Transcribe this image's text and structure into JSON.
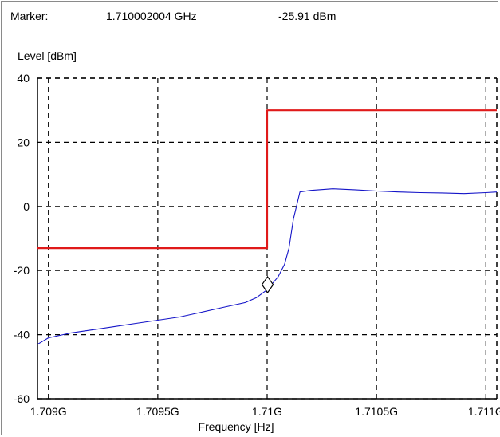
{
  "marker": {
    "label": "Marker:",
    "frequency": "1.710002004 GHz",
    "level": "-25.91 dBm"
  },
  "colors": {
    "trace": "#1414c8",
    "limit": "#e01a1a",
    "grid": "#000000"
  },
  "chart_data": {
    "type": "line",
    "title": "",
    "xlabel": "Frequency [Hz]",
    "ylabel": "Level [dBm]",
    "xlim": [
      1708950000,
      1711050000
    ],
    "ylim": [
      -60,
      40
    ],
    "grid": true,
    "x_ticks": [
      1709000000,
      1709500000,
      1710000000,
      1710500000,
      1711000000
    ],
    "x_tick_labels": [
      "1.709G",
      "1.7095G",
      "1.71G",
      "1.7105G",
      "1.711G"
    ],
    "y_ticks": [
      40,
      20,
      0,
      -20,
      -40,
      -60
    ],
    "y_tick_labels": [
      "40",
      "20",
      "0",
      "-20",
      "-40",
      "-60"
    ],
    "series": [
      {
        "role": "limit",
        "x": [
          1708950000,
          1710000000,
          1710000000,
          1711050000
        ],
        "y": [
          -13,
          -13,
          30,
          30
        ]
      },
      {
        "role": "trace",
        "x": [
          1708950000,
          1709000000,
          1709100000,
          1709200000,
          1709300000,
          1709400000,
          1709500000,
          1709600000,
          1709700000,
          1709800000,
          1709900000,
          1709950000,
          1710000000,
          1710050000,
          1710080000,
          1710100000,
          1710120000,
          1710150000,
          1710200000,
          1710300000,
          1710400000,
          1710500000,
          1710600000,
          1710700000,
          1710800000,
          1710900000,
          1711000000,
          1711050000
        ],
        "y": [
          -43,
          -41,
          -39.5,
          -38.5,
          -37.5,
          -36.5,
          -35.5,
          -34.5,
          -33,
          -31.5,
          -30,
          -28.5,
          -26,
          -22,
          -18,
          -13,
          -4,
          4.5,
          5,
          5.5,
          5.2,
          4.8,
          4.5,
          4.3,
          4.2,
          4,
          4.3,
          4.5
        ]
      }
    ],
    "marker_point": {
      "x": 1710002004,
      "y": -25.91
    }
  }
}
